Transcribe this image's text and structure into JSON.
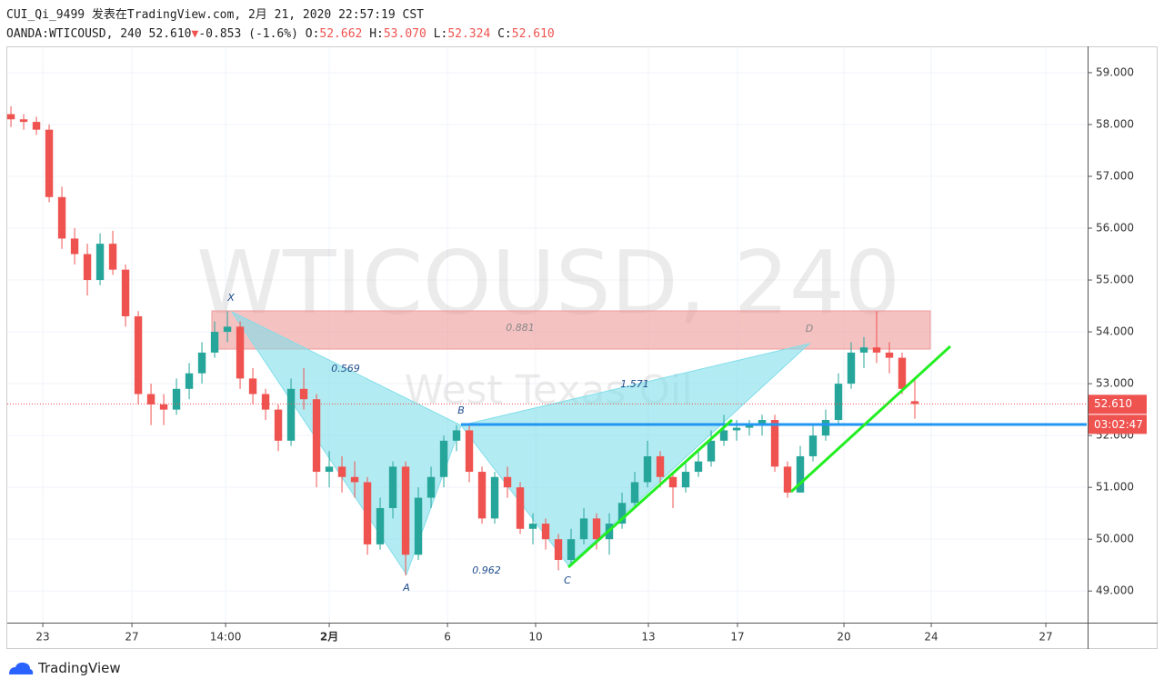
{
  "header": {
    "line1": "CUI_Qi_9499 发表在TradingView.com, 2月 21, 2020 22:57:19 CST",
    "symbol": "OANDA:WTICOUSD, 240",
    "last": "52.610",
    "arrow": "▼",
    "change": "-0.853 (-1.6%)",
    "o_key": "O:",
    "o": "52.662",
    "h_key": "H:",
    "h": "53.070",
    "l_key": "L:",
    "l": "52.324",
    "c_key": "C:",
    "c": "52.610"
  },
  "watermark": {
    "symbol": "WTICOUSD, 240",
    "description": "West Texas Oil"
  },
  "pattern": {
    "points": [
      "X",
      "A",
      "B",
      "C",
      "D"
    ],
    "ratios": [
      "0.569",
      "0.881",
      "1.571",
      "0.962"
    ]
  },
  "price_tag": "52.610",
  "countdown": "03:02:47",
  "brand": "TradingView",
  "chart_data": {
    "type": "candlestick",
    "up_color": "#26a69a",
    "down_color": "#ef5350",
    "candles": [
      [
        58.2,
        58.35,
        57.95,
        58.1
      ],
      [
        58.1,
        58.2,
        57.9,
        58.05
      ],
      [
        58.05,
        58.15,
        57.8,
        57.9
      ],
      [
        57.9,
        58.0,
        56.5,
        56.6
      ],
      [
        56.6,
        56.8,
        55.6,
        55.8
      ],
      [
        55.8,
        56.0,
        55.3,
        55.5
      ],
      [
        55.5,
        55.7,
        54.7,
        55.0
      ],
      [
        55.0,
        55.9,
        54.9,
        55.7
      ],
      [
        55.7,
        55.95,
        55.1,
        55.2
      ],
      [
        55.2,
        55.3,
        54.1,
        54.3
      ],
      [
        54.3,
        54.4,
        52.6,
        52.8
      ],
      [
        52.8,
        53.0,
        52.2,
        52.6
      ],
      [
        52.6,
        52.8,
        52.2,
        52.5
      ],
      [
        52.5,
        53.1,
        52.4,
        52.9
      ],
      [
        52.9,
        53.4,
        52.7,
        53.2
      ],
      [
        53.2,
        53.8,
        53.0,
        53.6
      ],
      [
        53.6,
        54.2,
        53.5,
        54.0
      ],
      [
        54.0,
        54.4,
        53.8,
        54.1
      ],
      [
        54.1,
        54.2,
        52.9,
        53.1
      ],
      [
        53.1,
        53.3,
        52.6,
        52.8
      ],
      [
        52.8,
        52.9,
        52.3,
        52.5
      ],
      [
        52.5,
        52.6,
        51.7,
        51.9
      ],
      [
        51.9,
        53.1,
        51.8,
        52.9
      ],
      [
        52.9,
        53.3,
        52.5,
        52.7
      ],
      [
        52.7,
        52.8,
        51.0,
        51.3
      ],
      [
        51.3,
        51.7,
        51.0,
        51.4
      ],
      [
        51.4,
        51.6,
        50.9,
        51.2
      ],
      [
        51.2,
        51.5,
        50.8,
        51.1
      ],
      [
        51.1,
        51.2,
        49.7,
        49.9
      ],
      [
        49.9,
        50.8,
        49.8,
        50.6
      ],
      [
        50.6,
        51.5,
        50.4,
        51.4
      ],
      [
        51.4,
        51.5,
        49.3,
        49.7
      ],
      [
        49.7,
        51.0,
        49.6,
        50.8
      ],
      [
        50.8,
        51.4,
        50.6,
        51.2
      ],
      [
        51.2,
        52.0,
        51.0,
        51.9
      ],
      [
        51.9,
        52.2,
        51.7,
        52.1
      ],
      [
        52.1,
        52.2,
        51.1,
        51.3
      ],
      [
        51.3,
        51.4,
        50.3,
        50.4
      ],
      [
        50.4,
        51.3,
        50.3,
        51.2
      ],
      [
        51.2,
        51.4,
        50.8,
        51.0
      ],
      [
        51.0,
        51.1,
        50.1,
        50.2
      ],
      [
        50.2,
        50.5,
        49.9,
        50.3
      ],
      [
        50.3,
        50.4,
        49.8,
        50.0
      ],
      [
        50.0,
        50.1,
        49.4,
        49.6
      ],
      [
        49.6,
        50.2,
        49.5,
        50.0
      ],
      [
        50.0,
        50.6,
        49.9,
        50.4
      ],
      [
        50.4,
        50.5,
        49.8,
        50.0
      ],
      [
        50.0,
        50.5,
        49.7,
        50.3
      ],
      [
        50.3,
        50.9,
        50.2,
        50.7
      ],
      [
        50.7,
        51.3,
        50.6,
        51.1
      ],
      [
        51.1,
        51.9,
        51.0,
        51.6
      ],
      [
        51.6,
        51.7,
        51.0,
        51.2
      ],
      [
        51.2,
        51.3,
        50.6,
        51.0
      ],
      [
        51.0,
        51.5,
        50.9,
        51.3
      ],
      [
        51.3,
        51.7,
        51.2,
        51.5
      ],
      [
        51.5,
        52.1,
        51.4,
        51.9
      ],
      [
        51.9,
        52.4,
        51.8,
        52.1
      ],
      [
        52.1,
        52.3,
        51.9,
        52.15
      ],
      [
        52.15,
        52.3,
        52.0,
        52.2
      ],
      [
        52.2,
        52.4,
        52.0,
        52.3
      ],
      [
        52.3,
        52.4,
        51.3,
        51.4
      ],
      [
        51.4,
        51.5,
        50.8,
        50.9
      ],
      [
        50.9,
        51.8,
        50.9,
        51.6
      ],
      [
        51.6,
        52.2,
        51.5,
        52.0
      ],
      [
        52.0,
        52.5,
        51.9,
        52.3
      ],
      [
        52.3,
        53.2,
        52.2,
        53.0
      ],
      [
        53.0,
        53.8,
        52.9,
        53.6
      ],
      [
        53.6,
        53.9,
        53.3,
        53.7
      ],
      [
        53.7,
        54.4,
        53.4,
        53.6
      ],
      [
        53.6,
        53.8,
        53.2,
        53.5
      ],
      [
        53.5,
        53.6,
        52.8,
        52.9
      ],
      [
        52.662,
        53.07,
        52.324,
        52.61
      ]
    ],
    "xlim": [
      -0.29,
      84.5
    ],
    "xticks": [
      {
        "value": 2.5,
        "label": "23"
      },
      {
        "value": 9.5,
        "label": "27"
      },
      {
        "value": 16.86,
        "label": "14:00"
      },
      {
        "value": 25,
        "label": "2月"
      },
      {
        "value": 34.29,
        "label": "6"
      },
      {
        "value": 41.21,
        "label": "10"
      },
      {
        "value": 50.07,
        "label": "13"
      },
      {
        "value": 57.07,
        "label": "17"
      },
      {
        "value": 65.43,
        "label": "20"
      },
      {
        "value": 72.29,
        "label": "24"
      },
      {
        "value": 81.29,
        "label": "27"
      }
    ],
    "ylim": [
      48.39,
      59.49
    ],
    "yticks": [
      {
        "value": 49,
        "label": "49.000"
      },
      {
        "value": 50,
        "label": "50.000"
      },
      {
        "value": 51,
        "label": "51.000"
      },
      {
        "value": 52,
        "label": "52.000"
      },
      {
        "value": 53,
        "label": "53.000"
      },
      {
        "value": 54,
        "label": "54.000"
      },
      {
        "value": 55,
        "label": "55.000"
      },
      {
        "value": 56,
        "label": "56.000"
      },
      {
        "value": 57,
        "label": "57.000"
      },
      {
        "value": 58,
        "label": "58.000"
      },
      {
        "value": 59,
        "label": "59.000"
      }
    ]
  }
}
